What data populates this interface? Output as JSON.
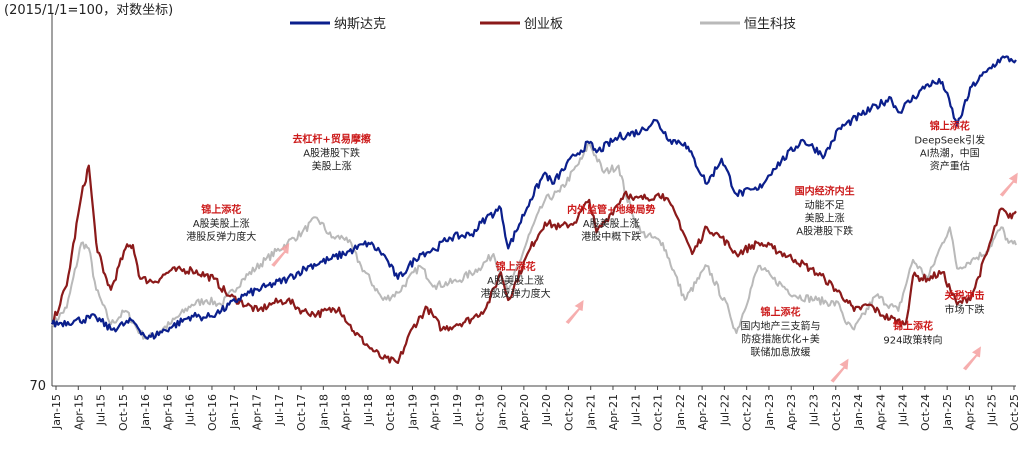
{
  "chart_data": {
    "type": "line",
    "title": "",
    "unit_note": "(2015/1/1=100，对数坐标)",
    "ylim": [
      70,
      600
    ],
    "y_scale": "log",
    "y_tick_labels": [
      {
        "value": 70,
        "label": "70"
      }
    ],
    "grid": false,
    "legend_position": "top",
    "x_tick_labels": [
      "Jan-15",
      "Apr-15",
      "Jul-15",
      "Oct-15",
      "Jan-16",
      "Apr-16",
      "Jul-16",
      "Oct-16",
      "Jan-17",
      "Apr-17",
      "Jul-17",
      "Oct-17",
      "Jan-18",
      "Apr-18",
      "Jul-18",
      "Oct-18",
      "Jan-19",
      "Apr-19",
      "Jul-19",
      "Oct-19",
      "Jan-20",
      "Apr-20",
      "Jul-20",
      "Oct-20",
      "Jan-21",
      "Apr-21",
      "Jul-21",
      "Oct-21",
      "Jan-22",
      "Apr-22",
      "Jul-22",
      "Oct-22",
      "Jan-23",
      "Apr-23",
      "Jul-23",
      "Oct-23",
      "Jan-24",
      "Apr-24",
      "Jul-24",
      "Oct-24",
      "Jan-25",
      "Apr-25",
      "Jul-25",
      "Oct-25"
    ],
    "x_range": [
      "2015-01",
      "2025-12"
    ],
    "series": [
      {
        "name": "纳斯达克",
        "color": "#0b1f8c",
        "points": [
          [
            "2015-01",
            100
          ],
          [
            "2015-04",
            102
          ],
          [
            "2015-07",
            104
          ],
          [
            "2015-09",
            97
          ],
          [
            "2015-12",
            102
          ],
          [
            "2016-02",
            92
          ],
          [
            "2016-05",
            98
          ],
          [
            "2016-08",
            105
          ],
          [
            "2016-10",
            104
          ],
          [
            "2016-12",
            108
          ],
          [
            "2017-03",
            118
          ],
          [
            "2017-06",
            124
          ],
          [
            "2017-09",
            130
          ],
          [
            "2017-12",
            140
          ],
          [
            "2018-03",
            146
          ],
          [
            "2018-06",
            154
          ],
          [
            "2018-08",
            160
          ],
          [
            "2018-10",
            150
          ],
          [
            "2018-12",
            130
          ],
          [
            "2019-03",
            150
          ],
          [
            "2019-05",
            154
          ],
          [
            "2019-07",
            165
          ],
          [
            "2019-10",
            168
          ],
          [
            "2019-12",
            185
          ],
          [
            "2020-02",
            195
          ],
          [
            "2020-03",
            155
          ],
          [
            "2020-06",
            205
          ],
          [
            "2020-08",
            240
          ],
          [
            "2020-09",
            225
          ],
          [
            "2020-12",
            265
          ],
          [
            "2021-02",
            285
          ],
          [
            "2021-03",
            270
          ],
          [
            "2021-06",
            295
          ],
          [
            "2021-09",
            305
          ],
          [
            "2021-11",
            325
          ],
          [
            "2022-01",
            290
          ],
          [
            "2022-03",
            285
          ],
          [
            "2022-06",
            225
          ],
          [
            "2022-08",
            260
          ],
          [
            "2022-10",
            212
          ],
          [
            "2023-01",
            218
          ],
          [
            "2023-03",
            245
          ],
          [
            "2023-07",
            290
          ],
          [
            "2023-10",
            265
          ],
          [
            "2023-12",
            310
          ],
          [
            "2024-03",
            335
          ],
          [
            "2024-07",
            370
          ],
          [
            "2024-08",
            340
          ],
          [
            "2024-12",
            400
          ],
          [
            "2025-02",
            405
          ],
          [
            "2025-04",
            315
          ],
          [
            "2025-06",
            395
          ],
          [
            "2025-08",
            430
          ],
          [
            "2025-10",
            465
          ],
          [
            "2025-12",
            460
          ]
        ]
      },
      {
        "name": "创业板",
        "color": "#8b1a1a",
        "points": [
          [
            "2015-01",
            100
          ],
          [
            "2015-03",
            125
          ],
          [
            "2015-05",
            210
          ],
          [
            "2015-06",
            250
          ],
          [
            "2015-07",
            160
          ],
          [
            "2015-08",
            135
          ],
          [
            "2015-09",
            122
          ],
          [
            "2015-11",
            155
          ],
          [
            "2015-12",
            158
          ],
          [
            "2016-01",
            130
          ],
          [
            "2016-03",
            128
          ],
          [
            "2016-05",
            136
          ],
          [
            "2016-08",
            137
          ],
          [
            "2016-11",
            130
          ],
          [
            "2017-01",
            118
          ],
          [
            "2017-05",
            108
          ],
          [
            "2017-07",
            113
          ],
          [
            "2017-09",
            115
          ],
          [
            "2017-11",
            108
          ],
          [
            "2018-01",
            106
          ],
          [
            "2018-04",
            110
          ],
          [
            "2018-06",
            96
          ],
          [
            "2018-08",
            88
          ],
          [
            "2018-10",
            82
          ],
          [
            "2018-12",
            80
          ],
          [
            "2019-02",
            98
          ],
          [
            "2019-04",
            110
          ],
          [
            "2019-06",
            97
          ],
          [
            "2019-08",
            100
          ],
          [
            "2019-10",
            103
          ],
          [
            "2019-12",
            110
          ],
          [
            "2020-02",
            135
          ],
          [
            "2020-03",
            115
          ],
          [
            "2020-06",
            155
          ],
          [
            "2020-08",
            180
          ],
          [
            "2020-10",
            175
          ],
          [
            "2020-12",
            180
          ],
          [
            "2021-02",
            205
          ],
          [
            "2021-03",
            170
          ],
          [
            "2021-05",
            190
          ],
          [
            "2021-07",
            215
          ],
          [
            "2021-08",
            205
          ],
          [
            "2021-11",
            210
          ],
          [
            "2021-12",
            212
          ],
          [
            "2022-02",
            185
          ],
          [
            "2022-04",
            150
          ],
          [
            "2022-06",
            175
          ],
          [
            "2022-08",
            165
          ],
          [
            "2022-10",
            150
          ],
          [
            "2023-01",
            160
          ],
          [
            "2023-03",
            155
          ],
          [
            "2023-06",
            145
          ],
          [
            "2023-08",
            138
          ],
          [
            "2023-10",
            130
          ],
          [
            "2024-01",
            115
          ],
          [
            "2024-02",
            108
          ],
          [
            "2024-04",
            112
          ],
          [
            "2024-06",
            105
          ],
          [
            "2024-09",
            100
          ],
          [
            "2024-10",
            132
          ],
          [
            "2024-12",
            130
          ],
          [
            "2025-02",
            135
          ],
          [
            "2025-04",
            112
          ],
          [
            "2025-06",
            118
          ],
          [
            "2025-08",
            150
          ],
          [
            "2025-10",
            195
          ],
          [
            "2025-11",
            185
          ],
          [
            "2025-12",
            192
          ]
        ]
      },
      {
        "name": "恒生科技",
        "color": "#b9b9b9",
        "points": [
          [
            "2015-01",
            100
          ],
          [
            "2015-03",
            110
          ],
          [
            "2015-05",
            160
          ],
          [
            "2015-06",
            155
          ],
          [
            "2015-07",
            122
          ],
          [
            "2015-09",
            100
          ],
          [
            "2015-11",
            108
          ],
          [
            "2016-01",
            95
          ],
          [
            "2016-02",
            92
          ],
          [
            "2016-05",
            100
          ],
          [
            "2016-08",
            112
          ],
          [
            "2016-10",
            115
          ],
          [
            "2016-12",
            112
          ],
          [
            "2017-03",
            130
          ],
          [
            "2017-06",
            145
          ],
          [
            "2017-09",
            160
          ],
          [
            "2017-11",
            170
          ],
          [
            "2018-01",
            185
          ],
          [
            "2018-03",
            165
          ],
          [
            "2018-05",
            165
          ],
          [
            "2018-07",
            140
          ],
          [
            "2018-10",
            115
          ],
          [
            "2018-12",
            120
          ],
          [
            "2019-03",
            140
          ],
          [
            "2019-05",
            125
          ],
          [
            "2019-08",
            128
          ],
          [
            "2019-11",
            138
          ],
          [
            "2020-01",
            150
          ],
          [
            "2020-03",
            120
          ],
          [
            "2020-06",
            170
          ],
          [
            "2020-08",
            205
          ],
          [
            "2020-10",
            215
          ],
          [
            "2021-01",
            260
          ],
          [
            "2021-02",
            285
          ],
          [
            "2021-04",
            240
          ],
          [
            "2021-06",
            250
          ],
          [
            "2021-07",
            210
          ],
          [
            "2021-09",
            170
          ],
          [
            "2021-12",
            160
          ],
          [
            "2022-03",
            115
          ],
          [
            "2022-06",
            140
          ],
          [
            "2022-09",
            108
          ],
          [
            "2022-10",
            95
          ],
          [
            "2023-01",
            140
          ],
          [
            "2023-03",
            130
          ],
          [
            "2023-06",
            118
          ],
          [
            "2023-09",
            115
          ],
          [
            "2023-12",
            112
          ],
          [
            "2024-01",
            100
          ],
          [
            "2024-02",
            97
          ],
          [
            "2024-05",
            118
          ],
          [
            "2024-08",
            108
          ],
          [
            "2024-10",
            145
          ],
          [
            "2024-12",
            130
          ],
          [
            "2025-02",
            160
          ],
          [
            "2025-03",
            175
          ],
          [
            "2025-04",
            138
          ],
          [
            "2025-06",
            145
          ],
          [
            "2025-08",
            152
          ],
          [
            "2025-10",
            175
          ],
          [
            "2025-11",
            160
          ],
          [
            "2025-12",
            158
          ]
        ]
      }
    ],
    "annotations": [
      {
        "date": "2016-12",
        "value": 160,
        "title": "锦上添花",
        "lines": [
          "A股美股上涨",
          "港股反弹力度大"
        ],
        "arrow": true
      },
      {
        "date": "2018-03",
        "value": 240,
        "title": "去杠杆+贸易摩擦",
        "lines": [
          "A股港股下跌",
          "美股上涨"
        ],
        "arrow": false
      },
      {
        "date": "2020-04",
        "value": 115,
        "title": "锦上添花",
        "lines": [
          "A股美股上涨",
          "港股反弹力度大"
        ],
        "arrow": true
      },
      {
        "date": "2021-05",
        "value": 160,
        "title": "内外监管+地缘局势",
        "lines": [
          "A股美股上涨",
          "港股中概下跌"
        ],
        "arrow": false
      },
      {
        "date": "2023-04",
        "value": 82,
        "title": "锦上添花",
        "lines": [
          "国内地产三支箭与",
          "防疫措施优化+美",
          "联储加息放缓"
        ],
        "arrow": true
      },
      {
        "date": "2023-10",
        "value": 165,
        "title": "国内经济内生",
        "lines": [
          "动能不足",
          "美股上涨",
          "A股港股下跌"
        ],
        "arrow": false
      },
      {
        "date": "2024-10",
        "value": 88,
        "title": "锦上添花",
        "lines": [
          "924政策转向"
        ],
        "arrow": true
      },
      {
        "date": "2025-03",
        "value": 240,
        "title": "锦上添花",
        "lines": [
          "DeepSeek引发",
          "AI热潮，中国",
          "资产重估"
        ],
        "arrow": true
      },
      {
        "date": "2025-05",
        "value": 105,
        "title": "关税冲击",
        "lines": [
          "市场下跌"
        ],
        "arrow": false
      }
    ]
  }
}
